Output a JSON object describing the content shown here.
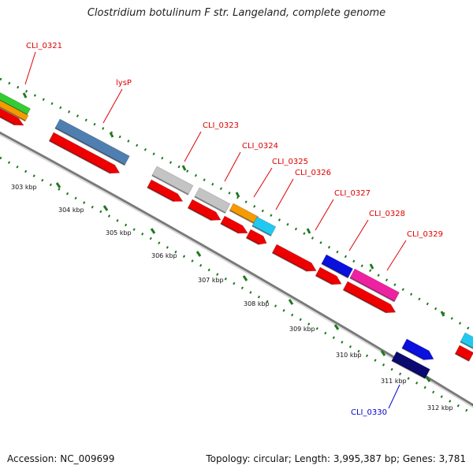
{
  "title": "Clostridium botulinum F str. Langeland, complete genome",
  "footer": {
    "accession": "Accession: NC_009699",
    "summary": "Topology: circular; Length: 3,995,387 bp; Genes: 3,781"
  },
  "colors": {
    "backbone": "#7a7a7a",
    "tick": "#1f7a1f",
    "label_red": "#dd0000",
    "label_blue": "#0000cc",
    "red": "#ee0000",
    "steelblue": "#4f7fb0",
    "gray": "#c4c4c4",
    "orange": "#f59a00",
    "cyan": "#22c8f0",
    "blue": "#0a10dd",
    "magenta": "#ee22a0",
    "navy": "#0a0a70",
    "green": "#33cc33"
  },
  "ticks": [
    "303 kbp",
    "304 kbp",
    "305 kbp",
    "306 kbp",
    "307 kbp",
    "308 kbp",
    "309 kbp",
    "310 kbp",
    "311 kbp",
    "312 kbp"
  ],
  "gene_labels": [
    "CLI_0321",
    "lysP",
    "CLI_0323",
    "CLI_0324",
    "CLI_0325",
    "CLI_0326",
    "CLI_0327",
    "CLI_0328",
    "CLI_0329",
    "CLI_0330"
  ]
}
